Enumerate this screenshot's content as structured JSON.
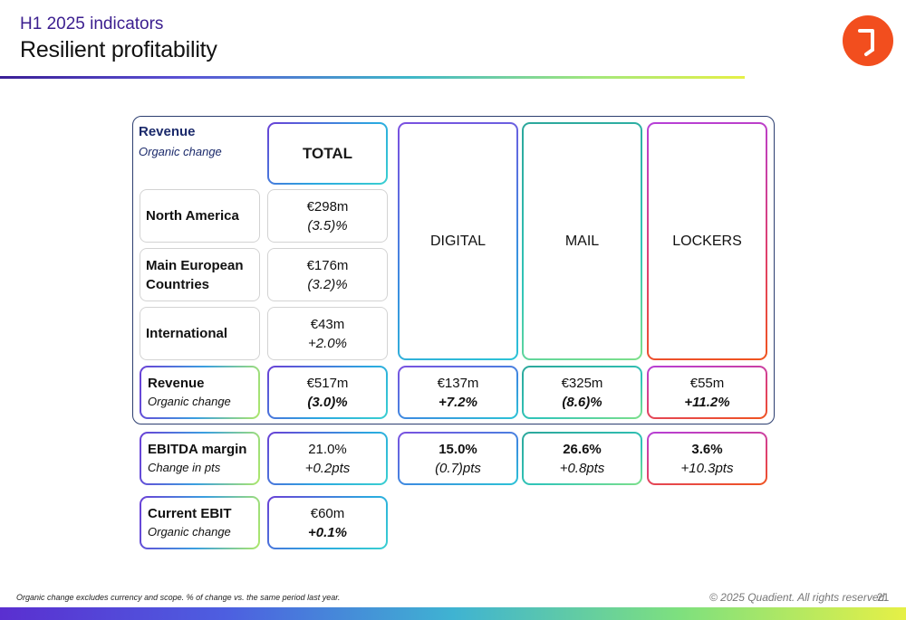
{
  "header": {
    "subtitle": "H1 2025 indicators",
    "title": "Resilient profitability"
  },
  "revenue_section": {
    "heading": "Revenue",
    "subheading": "Organic change",
    "total_label": "TOTAL",
    "regions": [
      {
        "label": "North America",
        "value": "€298m",
        "change": "(3.5)%"
      },
      {
        "label": "Main European Countries",
        "value": "€176m",
        "change": "(3.2)%"
      },
      {
        "label": "International",
        "value": "€43m",
        "change": "+2.0%"
      }
    ],
    "segments": [
      "DIGITAL",
      "MAIL",
      "LOCKERS"
    ]
  },
  "rows": {
    "revenue": {
      "label": "Revenue",
      "sub": "Organic change",
      "total": {
        "value": "€517m",
        "change": "(3.0)%"
      },
      "digital": {
        "value": "€137m",
        "change": "+7.2%"
      },
      "mail": {
        "value": "€325m",
        "change": "(8.6)%"
      },
      "lockers": {
        "value": "€55m",
        "change": "+11.2%"
      }
    },
    "ebitda": {
      "label": "EBITDA margin",
      "sub": "Change in pts",
      "total": {
        "value": "21.0%",
        "change": "+0.2pts"
      },
      "digital": {
        "value": "15.0%",
        "change": "(0.7)pts"
      },
      "mail": {
        "value": "26.6%",
        "change": "+0.8pts"
      },
      "lockers": {
        "value": "3.6%",
        "change": "+10.3pts"
      }
    },
    "ebit": {
      "label": "Current EBIT",
      "sub": "Organic change",
      "total": {
        "value": "€60m",
        "change": "+0.1%"
      }
    }
  },
  "footer": {
    "footnote": "Organic change excludes currency and scope. % of change vs. the same period last year.",
    "copyright": "© 2025 Quadient. All rights reserved.",
    "page": "21"
  },
  "colors": {
    "brand_orange": "#f24e1e",
    "title_purple": "#3b1e8f",
    "frame_navy": "#2c3e70"
  }
}
